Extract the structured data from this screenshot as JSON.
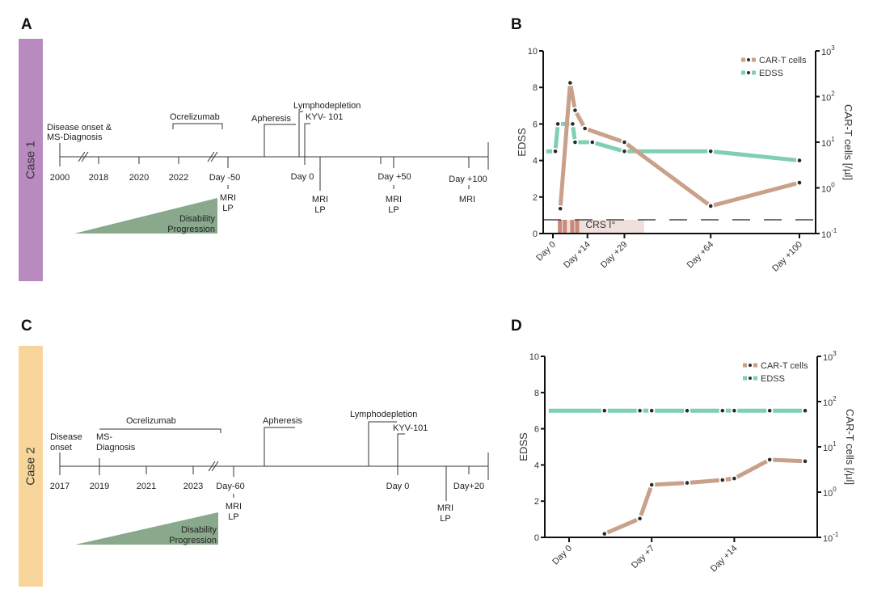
{
  "panels": {
    "A": {
      "letter": "A",
      "case_label": "Case 1",
      "case_color": "#b98ac0",
      "axis_ticks": [
        "2000",
        "2018",
        "2020",
        "2022",
        "Day -50",
        "Day 0",
        "Day +50",
        "Day +100"
      ],
      "events": {
        "onset_line1": "Disease onset &",
        "onset_line2": "MS-Diagnosis",
        "ocrelizumab": "Ocrelizumab",
        "apheresis": "Apheresis",
        "lymphodepletion": "Lymphodepletion",
        "kyv": "KYV- 101"
      },
      "procedures": [
        {
          "at": "Day -50",
          "lines": [
            "MRI",
            "LP"
          ]
        },
        {
          "at": "Day 0",
          "lines": [
            "MRI",
            "LP"
          ]
        },
        {
          "at": "Day +50",
          "lines": [
            "MRI",
            "LP"
          ]
        },
        {
          "at": "Day +100",
          "lines": [
            "MRI"
          ]
        }
      ],
      "progression_line1": "Disability",
      "progression_line2": "Progression"
    },
    "C": {
      "letter": "C",
      "case_label": "Case 2",
      "case_color": "#f8d59b",
      "axis_ticks": [
        "2017",
        "2019",
        "2021",
        "2023",
        "Day-60",
        "Day 0",
        "Day+20"
      ],
      "events": {
        "onset_line1": "Disease",
        "onset_line2": "onset",
        "diagnosis_line1": "MS-",
        "diagnosis_line2": "Diagnosis",
        "ocrelizumab": "Ocrelizumab",
        "apheresis": "Apheresis",
        "lymphodepletion": "Lymphodepletion",
        "kyv": "KYV-101"
      },
      "procedures": [
        {
          "at": "Day-60",
          "lines": [
            "MRI",
            "LP"
          ]
        },
        {
          "at": "post Day 0",
          "lines": [
            "MRI",
            "LP"
          ]
        }
      ],
      "progression_line1": "Disability",
      "progression_line2": "Progression"
    },
    "B": {
      "letter": "B"
    },
    "D": {
      "letter": "D"
    }
  },
  "colors": {
    "cart": "#c9a08a",
    "edss": "#7fcfb2",
    "point": "#2b2b2b",
    "crs": "#c98a7a",
    "crs_bg": "#efe0dd",
    "progression": "#8aa88c"
  },
  "chart_data": [
    {
      "panel": "B",
      "type": "line",
      "title": "",
      "xlabel": "",
      "ylabel": "EDSS",
      "y2label": "CAR-T cells [/µl]",
      "ylim": [
        0,
        10
      ],
      "y2lim_log10": [
        -1,
        3
      ],
      "yticks": [
        "0",
        "2",
        "4",
        "6",
        "8",
        "10"
      ],
      "y2ticks": [
        {
          "base": "10",
          "exp": "-1"
        },
        {
          "base": "10",
          "exp": "0"
        },
        {
          "base": "10",
          "exp": "1"
        },
        {
          "base": "10",
          "exp": "2"
        },
        {
          "base": "10",
          "exp": "3"
        }
      ],
      "xlim": [
        -4,
        104
      ],
      "xticks": [
        {
          "day": 0,
          "label": "Day 0"
        },
        {
          "day": 14,
          "label": "Day +14"
        },
        {
          "day": 29,
          "label": "Day +29"
        },
        {
          "day": 64,
          "label": "Day +64"
        },
        {
          "day": 100,
          "label": "Day +100"
        }
      ],
      "legend": [
        "CAR-T cells",
        "EDSS"
      ],
      "legend_position": "top-right",
      "series": [
        {
          "name": "EDSS",
          "axis": "left",
          "x": [
            -4,
            1,
            2,
            8,
            9,
            16,
            29,
            64,
            100
          ],
          "y": [
            4.5,
            4.5,
            6,
            6,
            5,
            5,
            4.5,
            4.5,
            4
          ]
        },
        {
          "name": "CAR-T cells",
          "axis": "right",
          "x": [
            3,
            7,
            9,
            13,
            29,
            64,
            100
          ],
          "y": [
            0.35,
            200,
            50,
            20,
            10,
            0.4,
            1.3
          ]
        }
      ],
      "detection_limit_line": 0.2,
      "annotation": {
        "label": "CRS I°",
        "day_start": 3,
        "day_end": 37,
        "stripe_days": [
          3,
          5,
          8,
          10
        ]
      }
    },
    {
      "panel": "D",
      "type": "line",
      "title": "",
      "xlabel": "",
      "ylabel": "EDSS",
      "y2label": "CAR-T cells [/µl]",
      "ylim": [
        0,
        10
      ],
      "y2lim_log10": [
        -1,
        3
      ],
      "yticks": [
        "0",
        "2",
        "4",
        "6",
        "8",
        "10"
      ],
      "y2ticks": [
        {
          "base": "10",
          "exp": "-1"
        },
        {
          "base": "10",
          "exp": "0"
        },
        {
          "base": "10",
          "exp": "1"
        },
        {
          "base": "10",
          "exp": "2"
        },
        {
          "base": "10",
          "exp": "3"
        }
      ],
      "xlim": [
        -2,
        21
      ],
      "xticks": [
        {
          "day": 0,
          "label": "Day 0"
        },
        {
          "day": 7,
          "label": "Day +7"
        },
        {
          "day": 14,
          "label": "Day +14"
        }
      ],
      "legend": [
        "CAR-T cells",
        "EDSS"
      ],
      "legend_position": "top-right",
      "series": [
        {
          "name": "EDSS",
          "axis": "left",
          "x": [
            -2,
            3,
            6,
            7,
            10,
            13,
            14,
            17,
            20
          ],
          "y": [
            7,
            7,
            7,
            7,
            7,
            7,
            7,
            7,
            7
          ]
        },
        {
          "name": "CAR-T cells",
          "axis": "right",
          "x": [
            3,
            6,
            7,
            10,
            13,
            14,
            17,
            20
          ],
          "y": [
            0.12,
            0.26,
            1.45,
            1.6,
            1.85,
            2.0,
            5.2,
            4.8
          ]
        }
      ]
    }
  ]
}
